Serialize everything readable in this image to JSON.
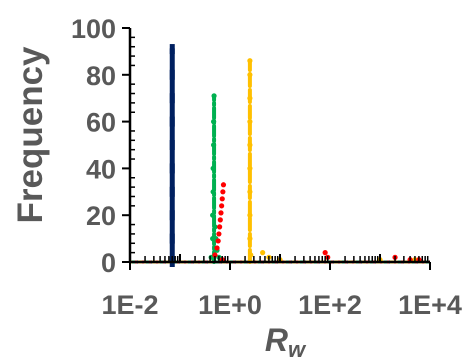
{
  "chart_data": {
    "type": "scatter",
    "title": "",
    "xlabel": "R",
    "xlabel_sub": "w",
    "ylabel": "Frequency",
    "x_scale": "log",
    "xlim": [
      0.01,
      10000
    ],
    "ylim": [
      0,
      100
    ],
    "x_ticks": [
      0.01,
      1,
      100,
      10000
    ],
    "x_tick_labels": [
      "1E-2",
      "1E+0",
      "1E+2",
      "1E+4"
    ],
    "y_ticks": [
      0,
      20,
      40,
      60,
      80,
      100
    ],
    "y_tick_labels": [
      "0",
      "20",
      "40",
      "60",
      "80",
      "100"
    ],
    "grid": false,
    "legend": "none",
    "series": [
      {
        "color": "#002060",
        "style": "solid",
        "points": [
          [
            0.07,
            0
          ],
          [
            0.07,
            10
          ],
          [
            0.07,
            20
          ],
          [
            0.07,
            30
          ],
          [
            0.07,
            40
          ],
          [
            0.07,
            50
          ],
          [
            0.07,
            60
          ],
          [
            0.07,
            70
          ],
          [
            0.07,
            80
          ],
          [
            0.07,
            91
          ]
        ]
      },
      {
        "color": "#00B050",
        "style": "dashdot",
        "points": [
          [
            0.42,
            2
          ],
          [
            0.45,
            10
          ],
          [
            0.45,
            20
          ],
          [
            0.46,
            30
          ],
          [
            0.46,
            40
          ],
          [
            0.47,
            50
          ],
          [
            0.47,
            60
          ],
          [
            0.48,
            71
          ],
          [
            0.5,
            15
          ],
          [
            0.52,
            10
          ],
          [
            0.55,
            5
          ],
          [
            0.6,
            2
          ]
        ]
      },
      {
        "color": "#FFC000",
        "style": "dashed",
        "points": [
          [
            2.5,
            10
          ],
          [
            2.5,
            20
          ],
          [
            2.5,
            30
          ],
          [
            2.5,
            40
          ],
          [
            2.5,
            50
          ],
          [
            2.5,
            60
          ],
          [
            2.5,
            70
          ],
          [
            2.5,
            80
          ],
          [
            2.5,
            86
          ],
          [
            2.6,
            3
          ],
          [
            4.5,
            4
          ],
          [
            6,
            2
          ],
          [
            10,
            1
          ],
          [
            1000,
            1
          ],
          [
            5000,
            1
          ]
        ]
      },
      {
        "color": "#FF0000",
        "style": "dotted",
        "points": [
          [
            0.5,
            3
          ],
          [
            0.55,
            6
          ],
          [
            0.58,
            9
          ],
          [
            0.6,
            12
          ],
          [
            0.62,
            15
          ],
          [
            0.64,
            18
          ],
          [
            0.66,
            21
          ],
          [
            0.68,
            24
          ],
          [
            0.7,
            27
          ],
          [
            0.72,
            30
          ],
          [
            0.74,
            33
          ],
          [
            0.7,
            1
          ],
          [
            80,
            4
          ],
          [
            90,
            2
          ],
          [
            2000,
            2
          ],
          [
            4000,
            1
          ],
          [
            6000,
            1
          ]
        ]
      }
    ]
  }
}
